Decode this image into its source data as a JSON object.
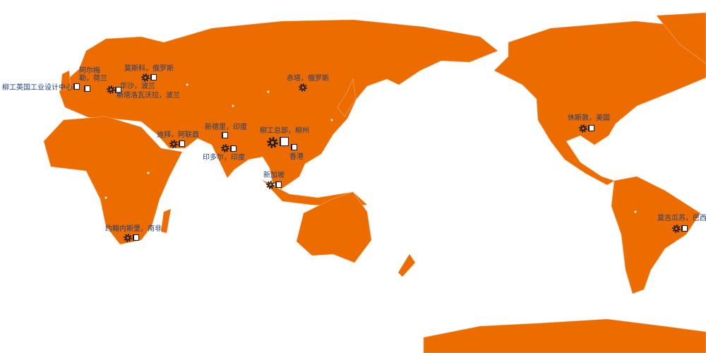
{
  "map": {
    "land_color": "#EC6C00",
    "label_color": "#1d3f7a",
    "sites": [
      {
        "label": "柳工英国工业设计中心",
        "icon": "logo"
      },
      {
        "label": "阿尔梅勒，荷兰",
        "icon": "logo"
      },
      {
        "label": "莫斯科，俄罗斯",
        "icon": "gear+logo"
      },
      {
        "label": "华沙，波兰",
        "icon": "gear+logo"
      },
      {
        "label": "斯塔洛瓦沃拉，波兰",
        "icon": "none"
      },
      {
        "label": "迪拜，阿联酋",
        "icon": "gear+logo"
      },
      {
        "label": "新德里，印度",
        "icon": "logo"
      },
      {
        "label": "印多尔，印度",
        "icon": "gear+logo"
      },
      {
        "label": "赤塔，俄罗斯",
        "icon": "gear"
      },
      {
        "label": "柳工总部，柳州",
        "icon": "gear+logo"
      },
      {
        "label": "香港",
        "icon": "logo"
      },
      {
        "label": "新加坡",
        "icon": "gear+logo"
      },
      {
        "label": "约翰内斯堡，南非",
        "icon": "gear+logo"
      },
      {
        "label": "休斯敦，美国",
        "icon": "gear+logo"
      },
      {
        "label": "莫吉瓜苏，巴西",
        "icon": "gear+logo"
      }
    ]
  }
}
